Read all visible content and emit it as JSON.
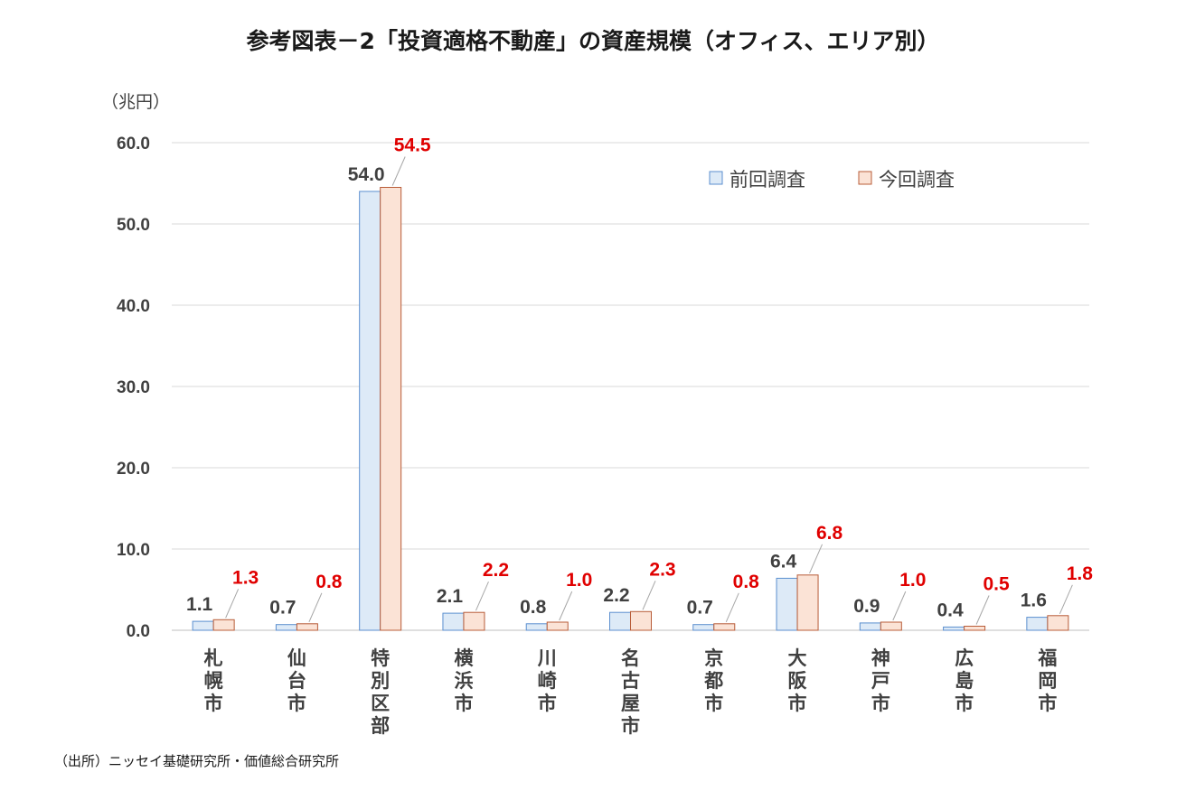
{
  "chart_data": {
    "type": "bar",
    "title": "参考図表－2「投資適格不動産」の資産規模（オフィス、エリア別）",
    "ylabel": "（兆円）",
    "ylim": [
      0,
      60
    ],
    "yticks": [
      "0.0",
      "10.0",
      "20.0",
      "30.0",
      "40.0",
      "50.0",
      "60.0"
    ],
    "grid": true,
    "legend_position": "top-right",
    "categories": [
      "札幌市",
      "仙台市",
      "特別区部",
      "横浜市",
      "川崎市",
      "名古屋市",
      "京都市",
      "大阪市",
      "神戸市",
      "広島市",
      "福岡市"
    ],
    "series": [
      {
        "name": "前回調査",
        "values": [
          1.1,
          0.7,
          54.0,
          2.1,
          0.8,
          2.2,
          0.7,
          6.4,
          0.9,
          0.4,
          1.6
        ],
        "labels": [
          "1.1",
          "0.7",
          "54.0",
          "2.1",
          "0.8",
          "2.2",
          "0.7",
          "6.4",
          "0.9",
          "0.4",
          "1.6"
        ],
        "fill": "#ddeaf7",
        "stroke": "#5b8fcf",
        "label_color": "#404040"
      },
      {
        "name": "今回調査",
        "values": [
          1.3,
          0.8,
          54.5,
          2.2,
          1.0,
          2.3,
          0.8,
          6.8,
          1.0,
          0.5,
          1.8
        ],
        "labels": [
          "1.3",
          "0.8",
          "54.5",
          "2.2",
          "1.0",
          "2.3",
          "0.8",
          "6.8",
          "1.0",
          "0.5",
          "1.8"
        ],
        "fill": "#fbe3d6",
        "stroke": "#b85c38",
        "label_color": "#e00000"
      }
    ]
  },
  "source_note": "（出所）ニッセイ基礎研究所・価値総合研究所"
}
